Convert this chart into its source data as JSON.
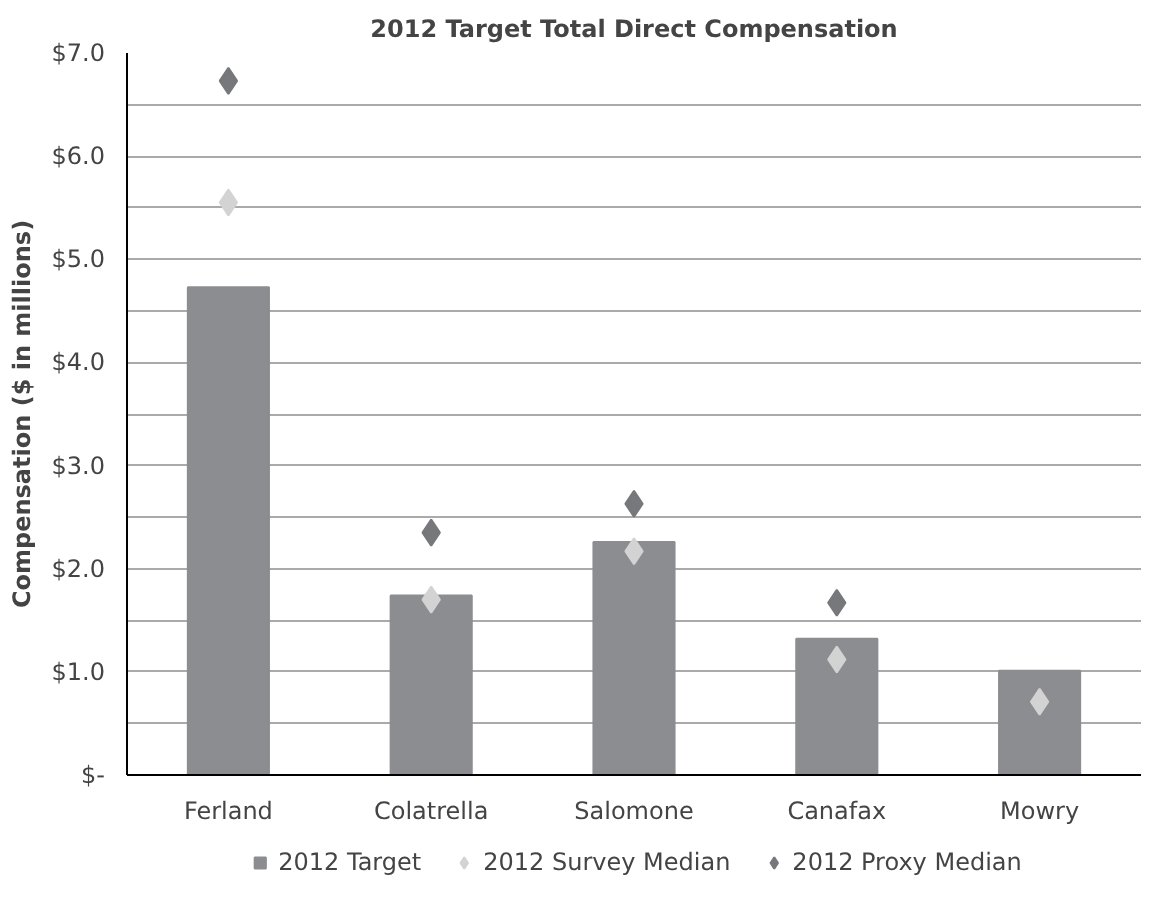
{
  "chart_data": {
    "type": "bar",
    "title": "2012 Target Total Direct Compensation",
    "ylabel": "Compensation ($ in millions)",
    "categories": [
      "Ferland",
      "Colatrella",
      "Salomone",
      "Canafax",
      "Mowry"
    ],
    "series": [
      {
        "name": "2012 Target",
        "color": "#8c8d91",
        "values": [
          4.73,
          1.74,
          2.26,
          1.32,
          1.01
        ]
      },
      {
        "name": "2012 Survey Median",
        "type": "scatter",
        "color": "#d3d3d3",
        "values": [
          5.55,
          1.7,
          2.17,
          1.12,
          0.71
        ]
      },
      {
        "name": "2012 Proxy Median",
        "type": "scatter",
        "color": "#77787b",
        "values": [
          6.73,
          2.35,
          2.63,
          1.67,
          null
        ]
      }
    ],
    "ylim": [
      0,
      7
    ],
    "yticks": [
      {
        "value": 0,
        "label": "$-"
      },
      {
        "value": 0.5,
        "label": null
      },
      {
        "value": 1,
        "label": "$1.0"
      },
      {
        "value": 1.5,
        "label": null
      },
      {
        "value": 2,
        "label": "$2.0"
      },
      {
        "value": 2.5,
        "label": null
      },
      {
        "value": 3,
        "label": "$3.0"
      },
      {
        "value": 3.5,
        "label": null
      },
      {
        "value": 4,
        "label": "$4.0"
      },
      {
        "value": 4.5,
        "label": null
      },
      {
        "value": 5,
        "label": "$5.0"
      },
      {
        "value": 5.5,
        "label": null
      },
      {
        "value": 6,
        "label": "$6.0"
      },
      {
        "value": 6.5,
        "label": null
      },
      {
        "value": 7,
        "label": "$7.0"
      }
    ],
    "grid": "y",
    "legend": "bottom",
    "marker": "diamond"
  }
}
